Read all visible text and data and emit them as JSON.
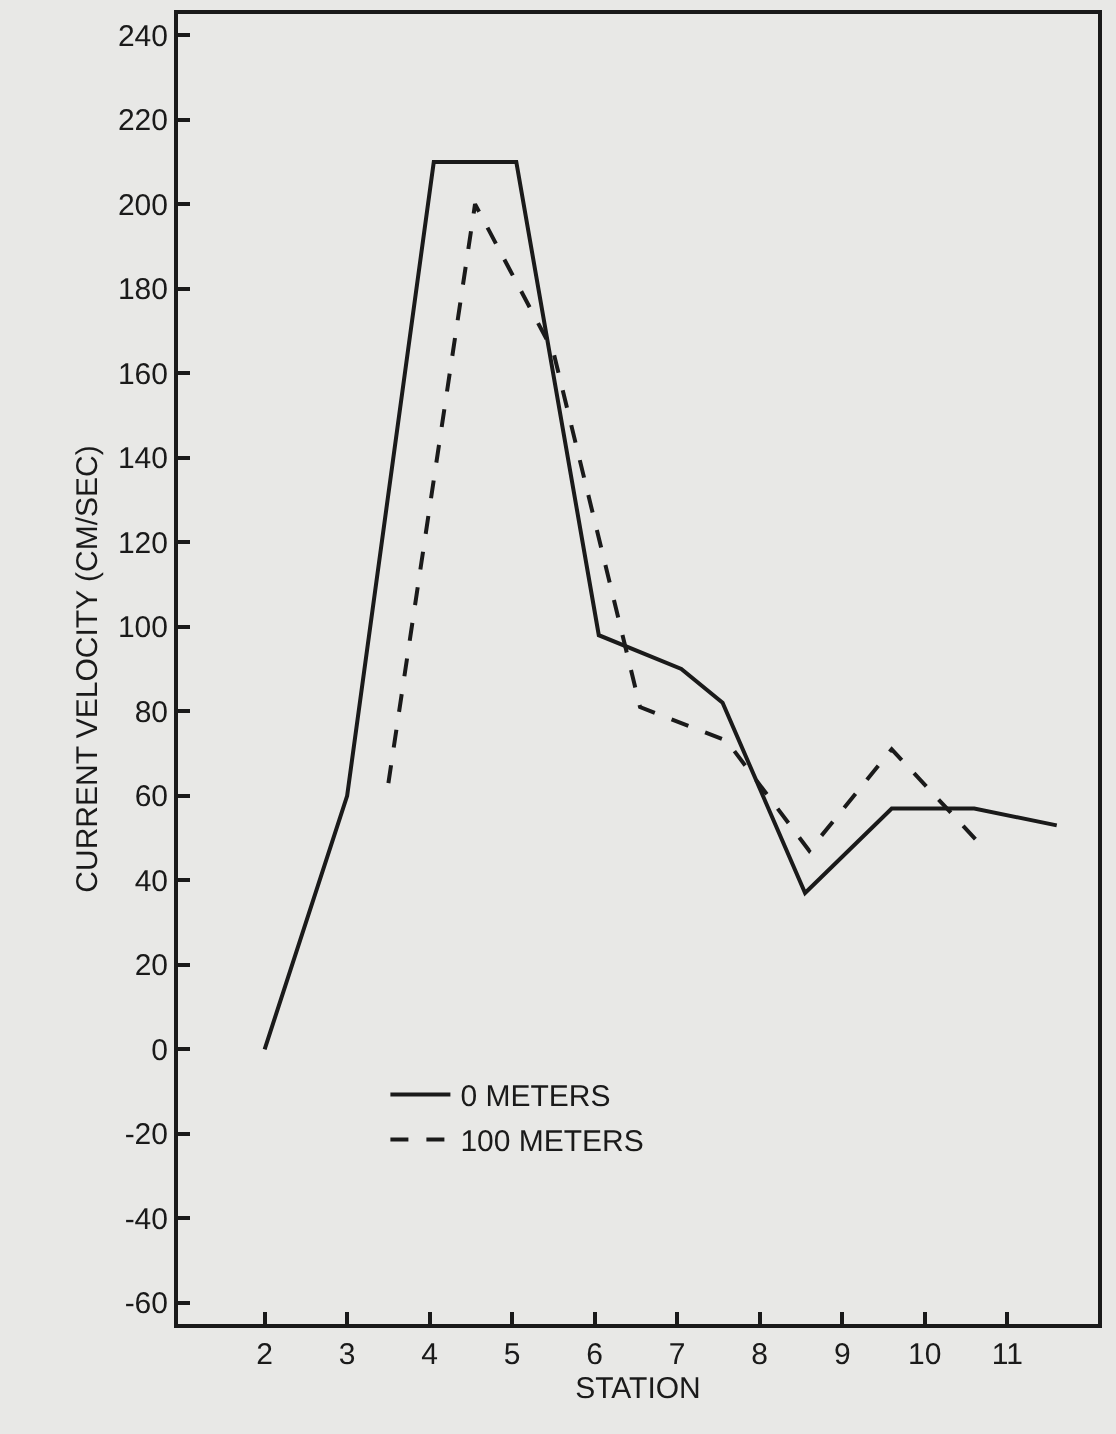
{
  "chart_data": {
    "type": "line",
    "xlabel": "STATION",
    "ylabel": "CURRENT VELOCITY (CM/SEC)",
    "xlim": [
      0.95,
      12.1
    ],
    "xticks": [
      2,
      3,
      4,
      5,
      6,
      7,
      8,
      9,
      10,
      11
    ],
    "ylim": [
      -65,
      245
    ],
    "yticks": [
      -60,
      -40,
      -20,
      0,
      20,
      40,
      60,
      80,
      100,
      120,
      140,
      160,
      180,
      200,
      220,
      240
    ],
    "grid": false,
    "legend": "bottom left",
    "marker": "none",
    "series": [
      {
        "name": "0 METERS",
        "color": "#1a1a1a",
        "line_style": "solid",
        "x": [
          2,
          3,
          4.05,
          5.05,
          6.05,
          7.05,
          7.55,
          8.55,
          9.6,
          10.6,
          11.6
        ],
        "values": [
          0,
          60,
          210,
          210,
          98,
          90,
          82,
          37,
          57,
          57,
          53
        ]
      },
      {
        "name": "100 METERS",
        "color": "#1a1a1a",
        "line_style": "dashed",
        "x": [
          3.5,
          4.55,
          5.5,
          6.55,
          7.6,
          8.6,
          9.6,
          10.65
        ],
        "values": [
          63,
          200,
          165,
          81,
          73,
          47,
          71,
          49
        ]
      }
    ]
  }
}
